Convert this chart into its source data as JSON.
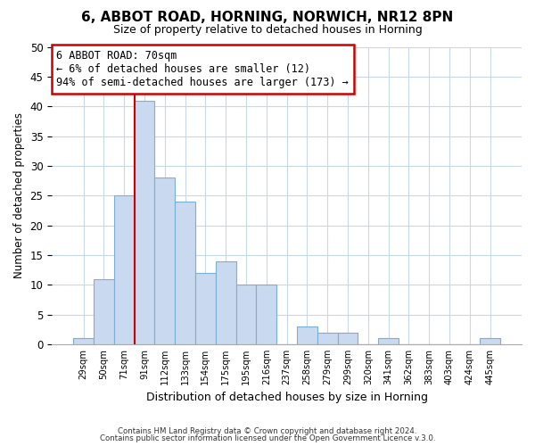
{
  "title": "6, ABBOT ROAD, HORNING, NORWICH, NR12 8PN",
  "subtitle": "Size of property relative to detached houses in Horning",
  "xlabel": "Distribution of detached houses by size in Horning",
  "ylabel": "Number of detached properties",
  "bin_labels": [
    "29sqm",
    "50sqm",
    "71sqm",
    "91sqm",
    "112sqm",
    "133sqm",
    "154sqm",
    "175sqm",
    "195sqm",
    "216sqm",
    "237sqm",
    "258sqm",
    "279sqm",
    "299sqm",
    "320sqm",
    "341sqm",
    "362sqm",
    "383sqm",
    "403sqm",
    "424sqm",
    "445sqm"
  ],
  "bar_values": [
    1,
    11,
    25,
    41,
    28,
    24,
    12,
    14,
    10,
    10,
    0,
    3,
    2,
    2,
    0,
    1,
    0,
    0,
    0,
    0,
    1
  ],
  "bar_color": "#c9d9f0",
  "bar_edge_color": "#7bafd4",
  "ylim": [
    0,
    50
  ],
  "yticks": [
    0,
    5,
    10,
    15,
    20,
    25,
    30,
    35,
    40,
    45,
    50
  ],
  "vline_color": "#cc0000",
  "annotation_title": "6 ABBOT ROAD: 70sqm",
  "annotation_line1": "← 6% of detached houses are smaller (12)",
  "annotation_line2": "94% of semi-detached houses are larger (173) →",
  "annotation_box_color": "#ffffff",
  "annotation_box_edge": "#cc0000",
  "footer1": "Contains HM Land Registry data © Crown copyright and database right 2024.",
  "footer2": "Contains public sector information licensed under the Open Government Licence v.3.0.",
  "background_color": "#ffffff",
  "grid_color": "#c8d8e8"
}
